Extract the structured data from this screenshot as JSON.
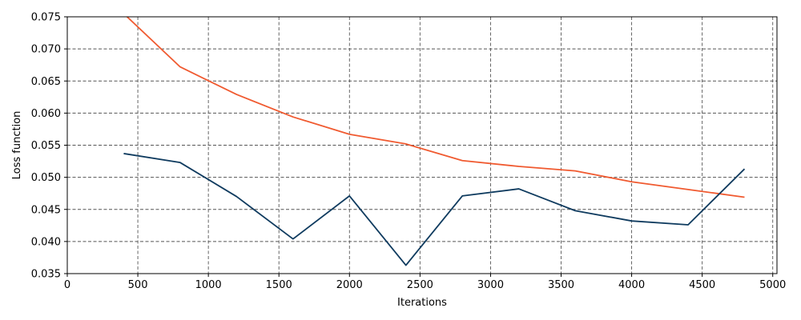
{
  "chart_data": {
    "type": "line",
    "title": "",
    "xlabel": "Iterations",
    "ylabel": "Loss function",
    "xlim": [
      0,
      5030
    ],
    "ylim": [
      0.035,
      0.075
    ],
    "xticks": [
      0,
      500,
      1000,
      1500,
      2000,
      2500,
      3000,
      3500,
      4000,
      4500,
      5000
    ],
    "xtick_labels": [
      "0",
      "500",
      "1000",
      "1500",
      "2000",
      "2500",
      "3000",
      "3500",
      "4000",
      "4500",
      "5000"
    ],
    "yticks": [
      0.035,
      0.04,
      0.045,
      0.05,
      0.055,
      0.06,
      0.065,
      0.07,
      0.075
    ],
    "ytick_labels": [
      "0.035",
      "0.040",
      "0.045",
      "0.050",
      "0.055",
      "0.060",
      "0.065",
      "0.070",
      "0.075"
    ],
    "grid": true,
    "legend": "none",
    "series": [
      {
        "color": "#f05a30",
        "x": [
          400,
          800,
          1200,
          1600,
          2000,
          2400,
          2800,
          3200,
          3600,
          4000,
          4400,
          4800
        ],
        "y": [
          0.0755,
          0.0672,
          0.0629,
          0.0594,
          0.0567,
          0.0552,
          0.0526,
          0.0517,
          0.051,
          0.0493,
          0.0481,
          0.0469
        ]
      },
      {
        "color": "#0f3b5f",
        "x": [
          400,
          800,
          1200,
          1600,
          2000,
          2400,
          2800,
          3200,
          3600,
          4000,
          4400,
          4800
        ],
        "y": [
          0.0537,
          0.0523,
          0.047,
          0.0404,
          0.0471,
          0.0363,
          0.0471,
          0.0482,
          0.0448,
          0.0432,
          0.0426,
          0.0513
        ]
      }
    ]
  }
}
